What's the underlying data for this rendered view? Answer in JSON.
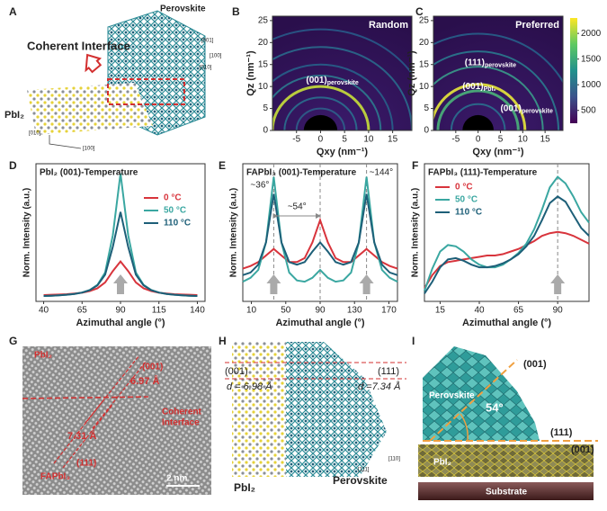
{
  "chart_data": [
    {
      "type": "heatmap",
      "panel": "B",
      "label": "Random",
      "xlabel": "Qxy (nm⁻¹)",
      "ylabel": "Qz (nm⁻¹)",
      "xlim": [
        -10,
        19
      ],
      "ylim": [
        0,
        26
      ],
      "xticks": [
        -5,
        0,
        5,
        10,
        15
      ],
      "yticks": [
        0,
        5,
        10,
        15,
        20,
        25
      ],
      "annotations": [
        {
          "text": "(001)",
          "sub": "perovskite"
        }
      ]
    },
    {
      "type": "heatmap",
      "panel": "C",
      "label": "Preferred",
      "xlabel": "Qxy (nm⁻¹)",
      "ylabel": "Qz (nm⁻¹)",
      "xlim": [
        -10,
        19
      ],
      "ylim": [
        0,
        26
      ],
      "xticks": [
        -5,
        0,
        5,
        10,
        15
      ],
      "yticks": [
        0,
        5,
        10,
        15,
        20,
        25
      ],
      "annotations": [
        {
          "text": "(111)",
          "sub": "perovskite"
        },
        {
          "text": "(001)",
          "sub": "PbI₂"
        },
        {
          "text": "(001)",
          "sub": "perovskite"
        }
      ],
      "colorbar": {
        "clim": [
          250,
          2300
        ],
        "ticks": [
          500,
          1000,
          1500,
          2000
        ]
      }
    },
    {
      "type": "line",
      "panel": "D",
      "title": "PbI₂ (001)-Temperature",
      "xlabel": "Azimuthal angle (°)",
      "ylabel": "Norm. Intensity (a.u.)",
      "legend": "center right",
      "xlim": [
        35,
        145
      ],
      "ylim": [
        0,
        1
      ],
      "xticks": [
        40,
        65,
        90,
        115,
        140
      ],
      "x": [
        40,
        45,
        50,
        55,
        60,
        65,
        70,
        75,
        80,
        85,
        90,
        95,
        100,
        105,
        110,
        115,
        120,
        125,
        130,
        135,
        140
      ],
      "series": [
        {
          "name": "0 °C",
          "color": "#d8343c",
          "values": [
            0.046,
            0.048,
            0.05,
            0.052,
            0.057,
            0.063,
            0.075,
            0.095,
            0.138,
            0.22,
            0.29,
            0.22,
            0.138,
            0.095,
            0.075,
            0.063,
            0.057,
            0.052,
            0.05,
            0.048,
            0.046
          ]
        },
        {
          "name": "50 °C",
          "color": "#3aa7a1",
          "values": [
            0.039,
            0.041,
            0.044,
            0.048,
            0.054,
            0.064,
            0.083,
            0.12,
            0.21,
            0.48,
            0.93,
            0.48,
            0.21,
            0.12,
            0.083,
            0.064,
            0.054,
            0.048,
            0.044,
            0.041,
            0.039
          ]
        },
        {
          "name": "110 °C",
          "color": "#1d5f78",
          "values": [
            0.039,
            0.041,
            0.044,
            0.048,
            0.054,
            0.064,
            0.081,
            0.116,
            0.194,
            0.396,
            0.65,
            0.396,
            0.194,
            0.116,
            0.081,
            0.064,
            0.054,
            0.048,
            0.044,
            0.041,
            0.039
          ]
        }
      ]
    },
    {
      "type": "line",
      "panel": "E",
      "title": "FAPbI₃ (001)-Temperature",
      "xlabel": "Azimuthal angle (°)",
      "ylabel": "Norm. Intensity (a.u.)",
      "xlim": [
        0,
        180
      ],
      "ylim": [
        0,
        1.05
      ],
      "xticks": [
        10,
        50,
        90,
        130,
        170
      ],
      "vlines": [
        36,
        90,
        144
      ],
      "annotations": [
        "~36°",
        "~54°",
        "~144°"
      ],
      "x": [
        0,
        9,
        18,
        27,
        36,
        45,
        54,
        63,
        72,
        81,
        90,
        99,
        108,
        117,
        126,
        135,
        144,
        153,
        162,
        171,
        180
      ],
      "series": [
        {
          "name": "0 °C",
          "color": "#d8343c",
          "values": [
            0.25,
            0.27,
            0.3,
            0.35,
            0.4,
            0.35,
            0.3,
            0.3,
            0.33,
            0.45,
            0.62,
            0.45,
            0.33,
            0.3,
            0.3,
            0.35,
            0.4,
            0.35,
            0.3,
            0.27,
            0.25
          ]
        },
        {
          "name": "50 °C",
          "color": "#3aa7a1",
          "values": [
            0.15,
            0.18,
            0.24,
            0.45,
            0.95,
            0.45,
            0.22,
            0.16,
            0.15,
            0.18,
            0.24,
            0.18,
            0.15,
            0.16,
            0.22,
            0.45,
            0.95,
            0.45,
            0.24,
            0.18,
            0.15
          ]
        },
        {
          "name": "110 °C",
          "color": "#1d5f78",
          "values": [
            0.2,
            0.22,
            0.28,
            0.45,
            0.82,
            0.45,
            0.3,
            0.28,
            0.3,
            0.38,
            0.45,
            0.38,
            0.3,
            0.28,
            0.3,
            0.45,
            0.82,
            0.45,
            0.28,
            0.22,
            0.2
          ]
        }
      ]
    },
    {
      "type": "line",
      "panel": "F",
      "title": "FAPbI₃ (111)-Temperature",
      "xlabel": "Azimuthal angle (°)",
      "ylabel": "Norm. Intensity (a.u.)",
      "legend": "upper left",
      "xlim": [
        5,
        110
      ],
      "ylim": [
        0,
        1.05
      ],
      "xticks": [
        15,
        40,
        65,
        90
      ],
      "vlines": [
        90
      ],
      "x": [
        5,
        10,
        15,
        20,
        25,
        30,
        35,
        40,
        45,
        50,
        55,
        60,
        65,
        70,
        75,
        80,
        85,
        90,
        95,
        100,
        105,
        110
      ],
      "series": [
        {
          "name": "0 °C",
          "color": "#d8343c",
          "values": [
            0.1,
            0.2,
            0.27,
            0.3,
            0.31,
            0.32,
            0.33,
            0.34,
            0.35,
            0.35,
            0.36,
            0.38,
            0.4,
            0.43,
            0.46,
            0.5,
            0.52,
            0.53,
            0.52,
            0.5,
            0.47,
            0.44
          ]
        },
        {
          "name": "50 °C",
          "color": "#3aa7a1",
          "values": [
            0.08,
            0.25,
            0.38,
            0.43,
            0.42,
            0.38,
            0.32,
            0.28,
            0.26,
            0.26,
            0.28,
            0.32,
            0.37,
            0.44,
            0.55,
            0.7,
            0.87,
            0.95,
            0.9,
            0.8,
            0.68,
            0.6
          ]
        },
        {
          "name": "110 °C",
          "color": "#1d5f78",
          "values": [
            0.06,
            0.15,
            0.26,
            0.32,
            0.33,
            0.31,
            0.28,
            0.26,
            0.26,
            0.27,
            0.29,
            0.32,
            0.36,
            0.42,
            0.5,
            0.62,
            0.75,
            0.8,
            0.76,
            0.66,
            0.56,
            0.5
          ]
        }
      ]
    }
  ],
  "panel_a": {
    "label": "A",
    "perovskite": "Perovskite",
    "interface": "Coherent Interface",
    "pbi2": "PbI₂",
    "axes": [
      "[001]",
      "[100]",
      "[010]",
      "[010]",
      "[100]"
    ]
  },
  "panel_g": {
    "label": "G",
    "pbi2": "PbI₂",
    "plane_001": "(001)",
    "d_001": "6.97 Å",
    "interface": [
      "Coherent",
      "Interface"
    ],
    "d_111": "7.31 Å",
    "plane_111": "(111)",
    "fapbi3": "FAPbI₃",
    "scale": "2 nm"
  },
  "panel_h": {
    "label": "H",
    "plane_001": "(001)",
    "plane_111": "(111)",
    "d_001": "d = 6.98 Å",
    "d_111": "d =7.34 Å",
    "pbi2": "PbI₂",
    "perovskite": "Perovskite",
    "axes": [
      "[110]",
      "[111]"
    ]
  },
  "panel_i": {
    "label": "I",
    "plane_001": "(001)",
    "perovskite": "Perovskite",
    "angle": "54°",
    "plane_111": "(111)",
    "plane_001_b": "(001)",
    "pbi2": "PbI₂",
    "substrate": "Substrate"
  }
}
